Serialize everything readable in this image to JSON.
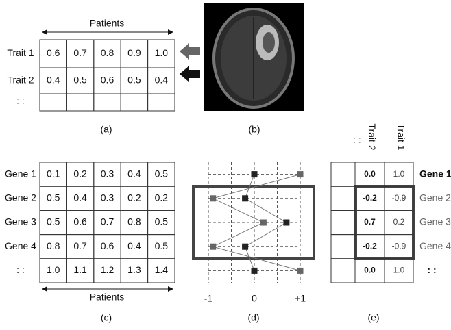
{
  "panel_a": {
    "header": "Patients",
    "rows": [
      {
        "label": "Trait 1",
        "cells": [
          "0.6",
          "0.7",
          "0.8",
          "0.9",
          "1.0"
        ]
      },
      {
        "label": "Trait 2",
        "cells": [
          "0.4",
          "0.5",
          "0.6",
          "0.5",
          "0.4"
        ]
      }
    ],
    "continuation": ": :",
    "caption": "(a)"
  },
  "panel_b": {
    "caption": "(b)"
  },
  "panel_c": {
    "rows": [
      {
        "label": "Gene 1",
        "cells": [
          "0.1",
          "0.2",
          "0.3",
          "0.4",
          "0.5"
        ]
      },
      {
        "label": "Gene 2",
        "cells": [
          "0.5",
          "0.4",
          "0.3",
          "0.2",
          "0.2"
        ]
      },
      {
        "label": "Gene 3",
        "cells": [
          "0.5",
          "0.6",
          "0.7",
          "0.8",
          "0.5"
        ]
      },
      {
        "label": "Gene 4",
        "cells": [
          "0.8",
          "0.7",
          "0.6",
          "0.4",
          "0.5"
        ]
      },
      {
        "label": ": :",
        "cells": [
          "1.0",
          "1.1",
          "1.2",
          "1.3",
          "1.4"
        ]
      }
    ],
    "footer": "Patients",
    "caption": "(c)"
  },
  "panel_d": {
    "xlim": [
      -1,
      1
    ],
    "xticks": [
      {
        "value": -1,
        "label": "-1"
      },
      0,
      {
        "value": 1,
        "label": "+1"
      }
    ],
    "trait1": [
      1,
      -0.9,
      0.2,
      -0.9,
      1
    ],
    "trait2": [
      0,
      -0.2,
      0.7,
      -0.2,
      0
    ],
    "caption": "(d)"
  },
  "panel_e": {
    "continuation": ": :",
    "headers": [
      "Trait 2",
      "Trait 1"
    ],
    "rows": [
      {
        "label": "Gene 1",
        "cells": [
          "0.0",
          "1.0"
        ]
      },
      {
        "label": "Gene 2",
        "cells": [
          "-0.2",
          "-0.9"
        ]
      },
      {
        "label": "Gene 3",
        "cells": [
          "0.7",
          "0.2"
        ]
      },
      {
        "label": "Gene 4",
        "cells": [
          "-0.2",
          "-0.9"
        ]
      },
      {
        "label": ": :",
        "cells": [
          "0.0",
          "1.0"
        ]
      }
    ],
    "caption": "(e)"
  }
}
